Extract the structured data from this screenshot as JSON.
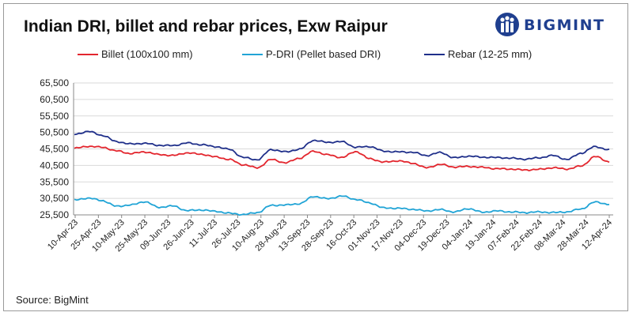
{
  "brand": {
    "name": "BIGMINT",
    "icon": "bigmint-logo-icon",
    "color": "#1f3f8f"
  },
  "source": "Source: BigMint",
  "chart_data": {
    "type": "line",
    "title": "Indian DRI, billet and rebar prices, Exw Raipur",
    "xlabel": "",
    "ylabel": "",
    "ylim": [
      25500,
      65500
    ],
    "yticks": [
      "65,500",
      "60,500",
      "55,500",
      "50,500",
      "45,500",
      "40,500",
      "35,500",
      "30,500",
      "25,500"
    ],
    "ytick_values": [
      65500,
      60500,
      55500,
      50500,
      45500,
      40500,
      35500,
      30500,
      25500
    ],
    "grid": "horizontal",
    "legend_position": "top",
    "x_labels": [
      "10-Apr-23",
      "25-Apr-23",
      "10-May-23",
      "25-May-23",
      "09-Jun-23",
      "26-Jun-23",
      "11-Jul-23",
      "26-Jul-23",
      "10-Aug-23",
      "28-Aug-23",
      "13-Sep-23",
      "28-Sep-23",
      "16-Oct-23",
      "01-Nov-23",
      "17-Nov-23",
      "04-Dec-23",
      "19-Dec-23",
      "04-Jan-24",
      "19-Jan-24",
      "07-Feb-24",
      "22-Feb-24",
      "08-Mar-24",
      "28-Mar-24",
      "12-Apr-24"
    ],
    "series": [
      {
        "name": "Billet (100x100 mm)",
        "color": "#e3262e",
        "values": [
          45700,
          46300,
          46000,
          44900,
          44100,
          44600,
          43800,
          43500,
          44300,
          43900,
          43100,
          42300,
          40700,
          39800,
          42300,
          41300,
          42700,
          44800,
          43700,
          42900,
          44700,
          42500,
          41500,
          41900,
          41200,
          39800,
          40800,
          40000,
          40200,
          39900,
          39500,
          39400,
          39100,
          39300,
          39800,
          39400,
          40300,
          43200,
          41600
        ]
      },
      {
        "name": "P-DRI (Pellet based DRI)",
        "color": "#21a4d6",
        "values": [
          30000,
          30600,
          29800,
          28100,
          28500,
          29500,
          27800,
          28200,
          26800,
          27000,
          26600,
          26000,
          25600,
          26200,
          28400,
          28500,
          28900,
          31100,
          30400,
          31200,
          30200,
          29100,
          27600,
          27500,
          27200,
          26700,
          27100,
          26400,
          27400,
          26300,
          26700,
          26400,
          26200,
          26400,
          26200,
          26400,
          27300,
          29400,
          28700
        ]
      },
      {
        "name": "Rebar (12-25 mm)",
        "color": "#1f2f8a",
        "values": [
          49900,
          50800,
          49600,
          47700,
          47000,
          47200,
          46600,
          46500,
          47300,
          46800,
          46200,
          45400,
          42900,
          42200,
          45300,
          44600,
          45400,
          48100,
          47500,
          47700,
          46000,
          46200,
          44800,
          44600,
          44500,
          43500,
          44400,
          42800,
          43300,
          43000,
          42900,
          42700,
          42400,
          42800,
          43500,
          42300,
          44200,
          46200,
          45200
        ]
      }
    ]
  }
}
